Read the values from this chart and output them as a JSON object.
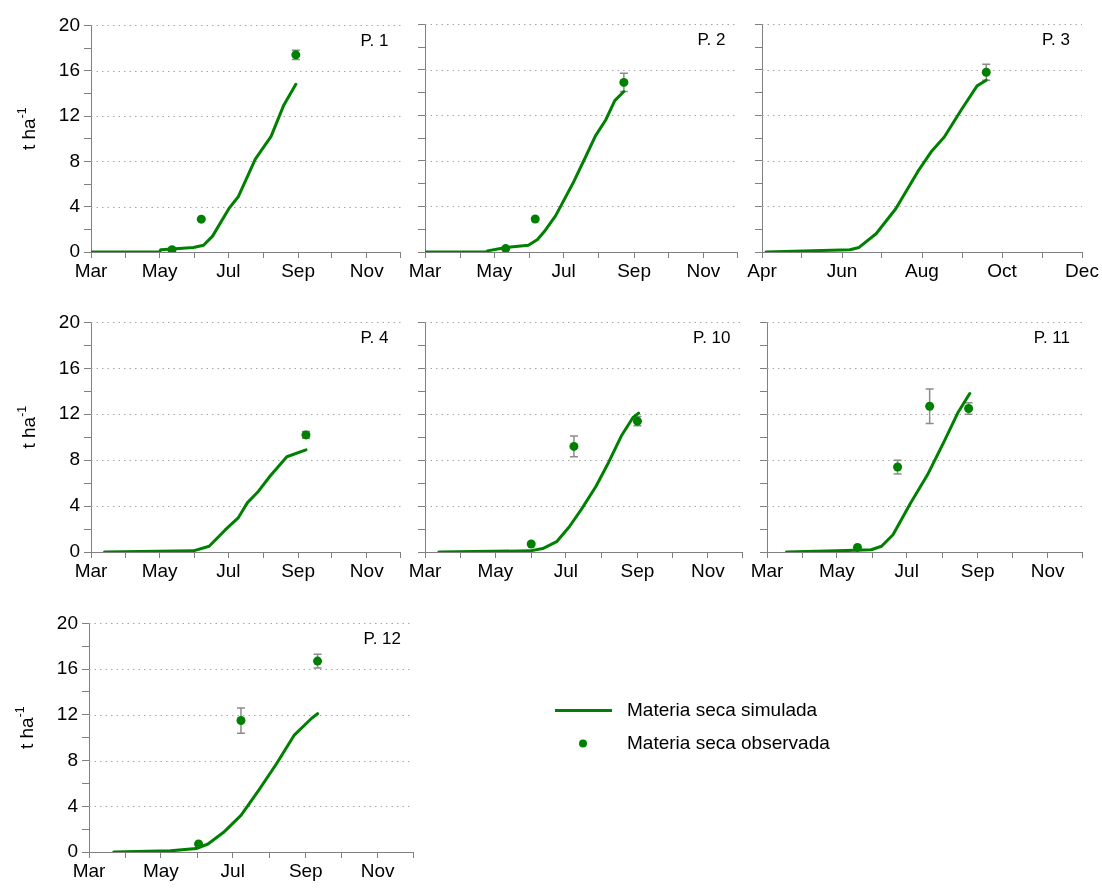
{
  "chart_data": [
    {
      "type": "line",
      "title": "P. 1",
      "ylabel": "t ha$^{-1}$",
      "xlim": [
        "--03-01",
        "--12-01"
      ],
      "xticks": [
        {
          "value": "--03-01",
          "label": "Mar"
        },
        {
          "value": "--04-01",
          "label": null
        },
        {
          "value": "--05-01",
          "label": "May"
        },
        {
          "value": "--06-01",
          "label": null
        },
        {
          "value": "--07-01",
          "label": "Jul"
        },
        {
          "value": "--08-01",
          "label": null
        },
        {
          "value": "--09-01",
          "label": "Sep"
        },
        {
          "value": "--10-01",
          "label": null
        },
        {
          "value": "--11-01",
          "label": "Nov"
        },
        {
          "value": "--12-01",
          "label": null
        }
      ],
      "ylim": [
        0,
        20
      ],
      "yticks": [
        0,
        {
          "value": 2,
          "label": null
        },
        4,
        {
          "value": 6,
          "label": null
        },
        8,
        {
          "value": 10,
          "label": null
        },
        12,
        {
          "value": 14,
          "label": null
        },
        16,
        {
          "value": 18,
          "label": null
        },
        20
      ],
      "grid": "y",
      "series": [
        {
          "type": "line",
          "color": "#008000",
          "x": [
            "--03-01",
            "--05-01",
            "--05-02",
            "--05-31",
            "--06-09",
            "--06-17",
            "--07-02",
            "--07-10",
            "--07-25",
            "--08-08",
            "--08-19",
            "--08-30"
          ],
          "values": [
            0,
            0,
            0.2,
            0.4,
            0.6,
            1.4,
            3.9,
            4.9,
            8.2,
            10.2,
            12.9,
            14.8
          ]
        },
        {
          "type": "scatter",
          "color": "#008000",
          "marker": "circle",
          "x": [
            "--05-12",
            "--06-07",
            "--08-30"
          ],
          "values": [
            0.2,
            2.9,
            17.4
          ],
          "errors": [
            null,
            null,
            0.4
          ]
        }
      ]
    },
    {
      "type": "line",
      "title": "P. 2",
      "tick_labels": "x",
      "xlim": [
        "--03-01",
        "--12-01"
      ],
      "xticks": [
        {
          "value": "--03-01",
          "label": "Mar"
        },
        {
          "value": "--04-01",
          "label": null
        },
        {
          "value": "--05-01",
          "label": "May"
        },
        {
          "value": "--06-01",
          "label": null
        },
        {
          "value": "--07-01",
          "label": "Jul"
        },
        {
          "value": "--08-01",
          "label": null
        },
        {
          "value": "--09-01",
          "label": "Sep"
        },
        {
          "value": "--10-01",
          "label": null
        },
        {
          "value": "--11-01",
          "label": "Nov"
        },
        {
          "value": "--12-01",
          "label": null
        }
      ],
      "ylim": [
        0,
        20
      ],
      "yticks": [
        0,
        {
          "value": 2,
          "label": null
        },
        4,
        {
          "value": 6,
          "label": null
        },
        8,
        {
          "value": 10,
          "label": null
        },
        12,
        {
          "value": 14,
          "label": null
        },
        16,
        {
          "value": 18,
          "label": null
        },
        20
      ],
      "grid": "y",
      "series": [
        {
          "type": "line",
          "color": "#008000",
          "x": [
            "--03-01",
            "--04-24",
            "--04-25",
            "--05-11",
            "--05-31",
            "--06-08",
            "--06-14",
            "--06-24",
            "--07-10",
            "--07-21",
            "--07-29",
            "--08-07",
            "--08-15",
            "--08-23"
          ],
          "values": [
            0,
            0,
            0.1,
            0.4,
            0.6,
            1.1,
            1.8,
            3.2,
            6.2,
            8.5,
            10.2,
            11.6,
            13.3,
            14.1
          ]
        },
        {
          "type": "scatter",
          "color": "#008000",
          "marker": "circle",
          "x": [
            "--05-11",
            "--06-06",
            "--08-23"
          ],
          "values": [
            0.3,
            2.9,
            14.9
          ],
          "errors": [
            null,
            null,
            0.8
          ]
        }
      ]
    },
    {
      "type": "line",
      "title": "P. 3",
      "tick_labels": "x",
      "xlim": [
        "--04-01",
        "--12-01"
      ],
      "xticks": [
        {
          "value": "--04-01",
          "label": "Apr"
        },
        {
          "value": "--05-01",
          "label": null
        },
        {
          "value": "--06-01",
          "label": "Jun"
        },
        {
          "value": "--07-01",
          "label": null
        },
        {
          "value": "--08-01",
          "label": "Aug"
        },
        {
          "value": "--09-01",
          "label": null
        },
        {
          "value": "--10-01",
          "label": "Oct"
        },
        {
          "value": "--11-01",
          "label": null
        },
        {
          "value": "--12-01",
          "label": "Dec"
        }
      ],
      "ylim": [
        0,
        20
      ],
      "yticks": [
        0,
        {
          "value": 2,
          "label": null
        },
        4,
        {
          "value": 6,
          "label": null
        },
        8,
        {
          "value": 10,
          "label": null
        },
        12,
        {
          "value": 14,
          "label": null
        },
        16,
        {
          "value": 18,
          "label": null
        },
        20
      ],
      "grid": "y",
      "series": [
        {
          "type": "line",
          "color": "#008000",
          "x": [
            "--04-04",
            "--06-07",
            "--06-14",
            "--06-27",
            "--07-12",
            "--07-29",
            "--08-08",
            "--08-18",
            "--08-31",
            "--09-12",
            "--09-19"
          ],
          "values": [
            0,
            0.2,
            0.4,
            1.6,
            3.8,
            7.1,
            8.8,
            10.1,
            12.5,
            14.6,
            15.1
          ]
        },
        {
          "type": "scatter",
          "color": "#008000",
          "marker": "circle",
          "x": [
            "--09-19"
          ],
          "values": [
            15.8
          ],
          "errors": [
            0.7
          ]
        }
      ]
    },
    {
      "type": "line",
      "title": "P. 4",
      "ylabel": "t ha$^{-1}$",
      "xlim": [
        "--03-01",
        "--12-01"
      ],
      "xticks": [
        {
          "value": "--03-01",
          "label": "Mar"
        },
        {
          "value": "--04-01",
          "label": null
        },
        {
          "value": "--05-01",
          "label": "May"
        },
        {
          "value": "--06-01",
          "label": null
        },
        {
          "value": "--07-01",
          "label": "Jul"
        },
        {
          "value": "--08-01",
          "label": null
        },
        {
          "value": "--09-01",
          "label": "Sep"
        },
        {
          "value": "--10-01",
          "label": null
        },
        {
          "value": "--11-01",
          "label": "Nov"
        },
        {
          "value": "--12-01",
          "label": null
        }
      ],
      "ylim": [
        0,
        20
      ],
      "yticks": [
        0,
        {
          "value": 2,
          "label": null
        },
        4,
        {
          "value": 6,
          "label": null
        },
        8,
        {
          "value": 10,
          "label": null
        },
        12,
        {
          "value": 14,
          "label": null
        },
        16,
        {
          "value": 18,
          "label": null
        },
        20
      ],
      "grid": "y",
      "series": [
        {
          "type": "line",
          "color": "#008000",
          "x": [
            "--03-13",
            "--05-31",
            "--06-14",
            "--06-28",
            "--07-10",
            "--07-18",
            "--07-27",
            "--08-07",
            "--08-22",
            "--09-08"
          ],
          "values": [
            0,
            0.1,
            0.5,
            1.9,
            3.0,
            4.3,
            5.2,
            6.6,
            8.3,
            8.9
          ]
        },
        {
          "type": "scatter",
          "color": "#008000",
          "marker": "circle",
          "x": [
            "--09-08"
          ],
          "values": [
            10.2
          ],
          "errors": [
            0.3
          ]
        }
      ]
    },
    {
      "type": "line",
      "title": "P. 10",
      "tick_labels": "x",
      "xlim": [
        "--03-01",
        "--12-01"
      ],
      "xticks": [
        {
          "value": "--03-01",
          "label": "Mar"
        },
        {
          "value": "--04-01",
          "label": null
        },
        {
          "value": "--05-01",
          "label": "May"
        },
        {
          "value": "--06-01",
          "label": null
        },
        {
          "value": "--07-01",
          "label": "Jul"
        },
        {
          "value": "--08-01",
          "label": null
        },
        {
          "value": "--09-01",
          "label": "Sep"
        },
        {
          "value": "--10-01",
          "label": null
        },
        {
          "value": "--11-01",
          "label": "Nov"
        },
        {
          "value": "--12-01",
          "label": null
        }
      ],
      "ylim": [
        0,
        20
      ],
      "yticks": [
        0,
        {
          "value": 2,
          "label": null
        },
        4,
        {
          "value": 6,
          "label": null
        },
        8,
        {
          "value": 10,
          "label": null
        },
        12,
        {
          "value": 14,
          "label": null
        },
        16,
        {
          "value": 18,
          "label": null
        },
        20
      ],
      "grid": "y",
      "series": [
        {
          "type": "line",
          "color": "#008000",
          "x": [
            "--03-13",
            "--05-31",
            "--06-11",
            "--06-23",
            "--07-04",
            "--07-15",
            "--07-27",
            "--08-07",
            "--08-18",
            "--08-28",
            "--09-02"
          ],
          "values": [
            0,
            0.1,
            0.3,
            0.9,
            2.2,
            3.8,
            5.7,
            7.8,
            10.1,
            11.7,
            12.1
          ]
        },
        {
          "type": "scatter",
          "color": "#008000",
          "marker": "circle",
          "x": [
            "--06-01",
            "--07-08",
            "--09-01"
          ],
          "values": [
            0.7,
            9.2,
            11.4
          ],
          "errors": [
            null,
            0.9,
            0.4
          ]
        }
      ]
    },
    {
      "type": "line",
      "title": "P. 11",
      "tick_labels": "x",
      "xlim": [
        "--03-01",
        "--12-01"
      ],
      "xticks": [
        {
          "value": "--03-01",
          "label": "Mar"
        },
        {
          "value": "--04-01",
          "label": null
        },
        {
          "value": "--05-01",
          "label": "May"
        },
        {
          "value": "--06-01",
          "label": null
        },
        {
          "value": "--07-01",
          "label": "Jul"
        },
        {
          "value": "--08-01",
          "label": null
        },
        {
          "value": "--09-01",
          "label": "Sep"
        },
        {
          "value": "--10-01",
          "label": null
        },
        {
          "value": "--11-01",
          "label": "Nov"
        },
        {
          "value": "--12-01",
          "label": null
        }
      ],
      "ylim": [
        0,
        20
      ],
      "yticks": [
        0,
        {
          "value": 2,
          "label": null
        },
        4,
        {
          "value": 6,
          "label": null
        },
        8,
        {
          "value": 10,
          "label": null
        },
        12,
        {
          "value": 14,
          "label": null
        },
        16,
        {
          "value": 18,
          "label": null
        },
        20
      ],
      "grid": "y",
      "series": [
        {
          "type": "line",
          "color": "#008000",
          "x": [
            "--03-18",
            "--05-01",
            "--05-31",
            "--06-09",
            "--06-19",
            "--07-04",
            "--07-19",
            "--08-03",
            "--08-15",
            "--08-25"
          ],
          "values": [
            0,
            0.1,
            0.2,
            0.5,
            1.5,
            4.2,
            6.7,
            9.7,
            12.2,
            13.8
          ]
        },
        {
          "type": "scatter",
          "color": "#008000",
          "marker": "circle",
          "x": [
            "--05-19",
            "--06-23",
            "--07-21",
            "--08-24"
          ],
          "values": [
            0.4,
            7.4,
            12.7,
            12.5
          ],
          "errors": [
            null,
            0.6,
            1.5,
            0.5
          ]
        }
      ]
    },
    {
      "type": "line",
      "title": "P. 12",
      "ylabel": "t ha$^{-1}$",
      "legend": "right",
      "xlim": [
        "--03-01",
        "--12-01"
      ],
      "xticks": [
        {
          "value": "--03-01",
          "label": "Mar"
        },
        {
          "value": "--04-01",
          "label": null
        },
        {
          "value": "--05-01",
          "label": "May"
        },
        {
          "value": "--06-01",
          "label": null
        },
        {
          "value": "--07-01",
          "label": "Jul"
        },
        {
          "value": "--08-01",
          "label": null
        },
        {
          "value": "--09-01",
          "label": "Sep"
        },
        {
          "value": "--10-01",
          "label": null
        },
        {
          "value": "--11-01",
          "label": "Nov"
        },
        {
          "value": "--12-01",
          "label": null
        }
      ],
      "ylim": [
        0,
        20
      ],
      "yticks": [
        0,
        {
          "value": 2,
          "label": null
        },
        4,
        {
          "value": 6,
          "label": null
        },
        8,
        {
          "value": 10,
          "label": null
        },
        12,
        {
          "value": 14,
          "label": null
        },
        16,
        {
          "value": 18,
          "label": null
        },
        20
      ],
      "grid": "y",
      "series": [
        {
          "type": "line",
          "name": "Materia seca simulada",
          "color": "#008000",
          "x": [
            "--03-22",
            "--05-09",
            "--05-31",
            "--06-10",
            "--06-23",
            "--07-08",
            "--07-23",
            "--08-07",
            "--08-22",
            "--09-06",
            "--09-11"
          ],
          "values": [
            0,
            0.1,
            0.3,
            0.7,
            1.7,
            3.2,
            5.4,
            7.7,
            10.2,
            11.7,
            12.1
          ]
        },
        {
          "type": "scatter",
          "name": "Materia seca observada",
          "color": "#008000",
          "marker": "circle",
          "x": [
            "--06-02",
            "--07-08",
            "--09-11"
          ],
          "values": [
            0.7,
            11.5,
            16.7
          ],
          "errors": [
            null,
            1.1,
            0.6
          ]
        }
      ]
    }
  ]
}
